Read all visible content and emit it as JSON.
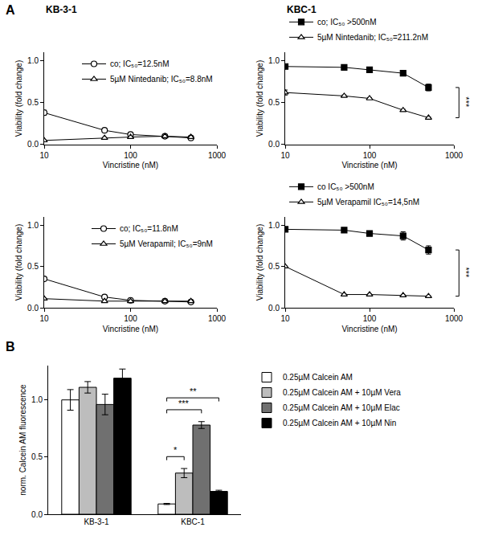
{
  "panel_labels": [
    "A",
    "B"
  ],
  "chart_data": [
    {
      "type": "line",
      "title": "KB-3-1",
      "xlabel": "Vincristine (nM)",
      "ylabel": "Viability (fold change)",
      "x": [
        10,
        50,
        100,
        250,
        500
      ],
      "log": "x",
      "xlim": [
        10,
        1000
      ],
      "xticks": [
        10,
        100,
        1000
      ],
      "ylim": [
        0,
        1.1
      ],
      "yticks": [
        {
          "value": 0,
          "label": "0.0"
        },
        0.5,
        {
          "value": 1,
          "label": "1.0"
        }
      ],
      "grid": false,
      "legend": "upper right",
      "series": [
        {
          "name": "co; IC₅₀=12.5nM",
          "color": "#000000",
          "marker": "circle-open",
          "line_style": "solid",
          "values": [
            0.38,
            0.17,
            0.12,
            0.1,
            0.08
          ],
          "errors": [
            0.03,
            0.01,
            0.01,
            0.01,
            0.01
          ]
        },
        {
          "name": "5µM Nintedanib; IC₅₀=8.8nM",
          "color": "#000000",
          "marker": "triangle-up-open",
          "line_style": "solid",
          "values": [
            0.05,
            0.08,
            0.09,
            0.1,
            0.09
          ],
          "errors": [
            0.005,
            0.005,
            0.005,
            0.005,
            0.005
          ]
        }
      ]
    },
    {
      "type": "line",
      "title": "KBC-1",
      "xlabel": "Vincristine (nM)",
      "ylabel": "Viability (fold change)",
      "x": [
        10,
        50,
        100,
        250,
        500
      ],
      "log": "x",
      "xlim": [
        10,
        1000
      ],
      "xticks": [
        10,
        100,
        1000
      ],
      "ylim": [
        0,
        1.1
      ],
      "yticks": [
        {
          "value": 0,
          "label": "0.0"
        },
        0.5,
        {
          "value": 1,
          "label": "1.0"
        }
      ],
      "grid": false,
      "legend": "top",
      "series": [
        {
          "name": "co; IC₅₀ >500nM",
          "color": "#000000",
          "marker": "square",
          "line_style": "solid",
          "values": [
            0.93,
            0.92,
            0.89,
            0.85,
            0.68
          ],
          "errors": [
            0.01,
            0.01,
            0.02,
            0.03,
            0.04
          ]
        },
        {
          "name": "5µM Nintedanib; IC₅₀=211.2nM",
          "color": "#000000",
          "marker": "triangle-up-open",
          "line_style": "solid",
          "values": [
            0.62,
            0.58,
            0.55,
            0.41,
            0.32
          ],
          "errors": [
            0.03,
            0.01,
            0.01,
            0.01,
            0.01
          ]
        }
      ],
      "annotations": [
        {
          "text": "***",
          "between": [
            "co; IC₅₀ >500nM",
            "5µM Nintedanib; IC₅₀=211.2nM"
          ]
        }
      ]
    },
    {
      "type": "line",
      "xlabel": "Vincristine (nM)",
      "ylabel": "Viability (fold change)",
      "x": [
        10,
        50,
        100,
        250,
        500
      ],
      "log": "x",
      "xlim": [
        10,
        1000
      ],
      "xticks": [
        10,
        100,
        1000
      ],
      "ylim": [
        0,
        1.1
      ],
      "yticks": [
        {
          "value": 0,
          "label": "0.0"
        },
        0.5,
        {
          "value": 1,
          "label": "1.0"
        }
      ],
      "grid": false,
      "legend": "upper right",
      "series": [
        {
          "name": "co; IC₅₀=11.8nM",
          "color": "#000000",
          "marker": "circle-open",
          "line_style": "solid",
          "values": [
            0.35,
            0.13,
            0.09,
            0.08,
            0.07
          ],
          "errors": [
            0.01,
            0.01,
            0.005,
            0.005,
            0.005
          ]
        },
        {
          "name": "5µM Verapamil; IC₅₀=9nM",
          "color": "#000000",
          "marker": "triangle-up-open",
          "line_style": "solid",
          "values": [
            0.11,
            0.08,
            0.08,
            0.08,
            0.08
          ],
          "errors": [
            0.005,
            0.005,
            0.005,
            0.005,
            0.005
          ]
        }
      ]
    },
    {
      "type": "line",
      "xlabel": "Vincristine (nM)",
      "ylabel": "Viability (fold change)",
      "x": [
        10,
        50,
        100,
        250,
        500
      ],
      "log": "x",
      "xlim": [
        10,
        1000
      ],
      "xticks": [
        10,
        100,
        1000
      ],
      "ylim": [
        0,
        1.1
      ],
      "yticks": [
        {
          "value": 0,
          "label": "0.0"
        },
        0.5,
        {
          "value": 1,
          "label": "1.0"
        }
      ],
      "grid": false,
      "legend": "top",
      "series": [
        {
          "name": "co IC₅₀ >500nM",
          "color": "#000000",
          "marker": "square",
          "line_style": "solid",
          "values": [
            0.95,
            0.94,
            0.9,
            0.87,
            0.7
          ],
          "errors": [
            0.02,
            0.02,
            0.03,
            0.05,
            0.05
          ]
        },
        {
          "name": "5µM Verapamil IC₅₀=14,5nM",
          "color": "#000000",
          "marker": "triangle-up-open",
          "line_style": "solid",
          "values": [
            0.5,
            0.16,
            0.16,
            0.15,
            0.14
          ],
          "errors": [
            0.005,
            0.005,
            0.005,
            0.005,
            0.005
          ]
        }
      ],
      "annotations": [
        {
          "text": "***",
          "between": [
            "co IC₅₀ >500nM",
            "5µM Verapamil IC₅₀=14,5nM"
          ]
        }
      ]
    },
    {
      "type": "bar",
      "ylabel": "norm. Calcein AM fluorescence",
      "categories": [
        "KB-3-1",
        "KBC-1"
      ],
      "ylim": [
        0,
        1.3
      ],
      "yticks": [
        {
          "value": 0,
          "label": "0.0"
        },
        0.5,
        {
          "value": 1,
          "label": "1.0"
        }
      ],
      "grid": false,
      "legend": "right",
      "series": [
        {
          "name": "0.25µM Calcein AM",
          "color": "#ffffff",
          "values": [
            1.0,
            0.09
          ],
          "errors": [
            0.09,
            0.005
          ]
        },
        {
          "name": "0.25µM Calcein AM + 10µM Vera",
          "color": "#bdbdbd",
          "values": [
            1.11,
            0.36
          ],
          "errors": [
            0.05,
            0.04
          ]
        },
        {
          "name": "0.25µM Calcein AM + 10µM Elac",
          "color": "#707070",
          "values": [
            0.96,
            0.78
          ],
          "errors": [
            0.09,
            0.03
          ]
        },
        {
          "name": "0.25µM Calcein AM + 10µM Nin",
          "color": "#000000",
          "values": [
            1.19,
            0.2
          ],
          "errors": [
            0.08,
            0.01
          ]
        }
      ],
      "annotations": [
        {
          "text": "*",
          "category": "KBC-1",
          "between": [
            "0.25µM Calcein AM",
            "0.25µM Calcein AM + 10µM Vera"
          ]
        },
        {
          "text": "***",
          "category": "KBC-1",
          "between": [
            "0.25µM Calcein AM",
            "0.25µM Calcein AM + 10µM Elac"
          ]
        },
        {
          "text": "**",
          "category": "KBC-1",
          "between": [
            "0.25µM Calcein AM",
            "0.25µM Calcein AM + 10µM Nin"
          ]
        }
      ]
    }
  ]
}
